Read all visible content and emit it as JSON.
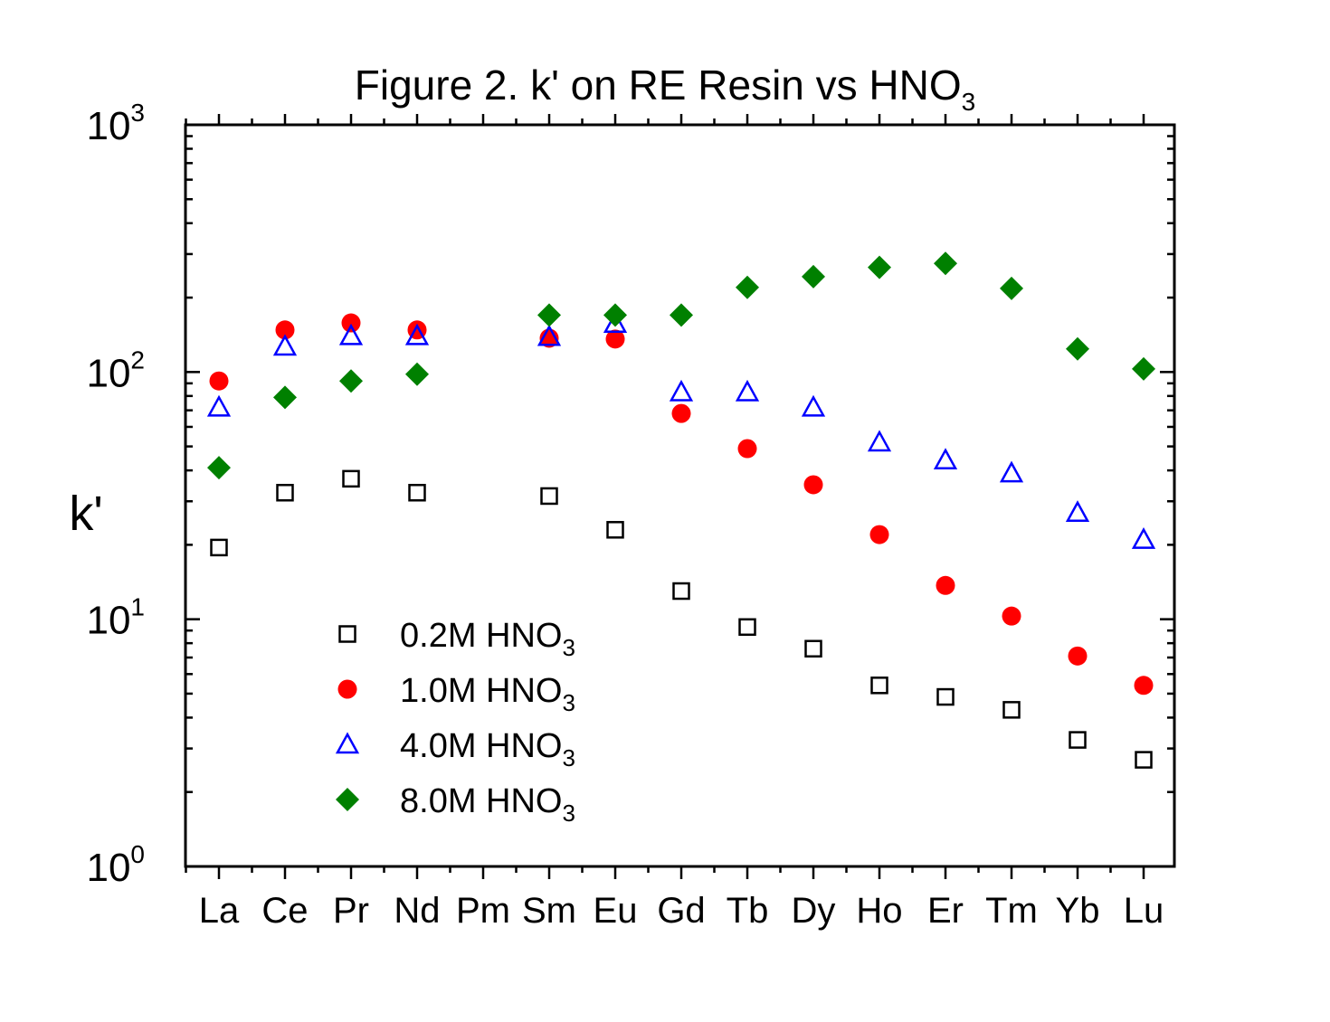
{
  "chart_data": {
    "type": "scatter",
    "title": "Figure 2. k' on RE Resin vs HNO",
    "title_subscript": "3",
    "ylabel": "k'",
    "yscale": "log",
    "ylim": [
      1,
      1000
    ],
    "y_ticks": [
      {
        "base": "10",
        "exp": "0",
        "value": 1
      },
      {
        "base": "10",
        "exp": "1",
        "value": 10
      },
      {
        "base": "10",
        "exp": "2",
        "value": 100
      },
      {
        "base": "10",
        "exp": "3",
        "value": 1000
      }
    ],
    "categories": [
      "La",
      "Ce",
      "Pr",
      "Nd",
      "Pm",
      "Sm",
      "Eu",
      "Gd",
      "Tb",
      "Dy",
      "Ho",
      "Er",
      "Tm",
      "Yb",
      "Lu"
    ],
    "legend_position": "lower-left",
    "series": [
      {
        "name": "0.2M HNO",
        "name_subscript": "3",
        "marker": "open-square",
        "color": "#000000",
        "values": [
          19.5,
          32.5,
          37,
          32.5,
          null,
          31.5,
          23,
          13,
          9.3,
          7.6,
          5.4,
          4.85,
          4.3,
          3.25,
          2.7
        ]
      },
      {
        "name": "1.0M HNO",
        "name_subscript": "3",
        "marker": "filled-circle",
        "color": "#ff0000",
        "values": [
          92,
          148,
          158,
          148,
          null,
          137,
          136,
          68,
          49,
          35,
          22,
          13.7,
          10.3,
          7.1,
          5.4
        ]
      },
      {
        "name": "4.0M HNO",
        "name_subscript": "3",
        "marker": "open-triangle",
        "color": "#0000ff",
        "values": [
          72,
          127,
          140,
          140,
          null,
          139,
          157,
          83,
          83,
          72,
          52,
          44,
          39,
          27,
          21
        ]
      },
      {
        "name": "8.0M HNO",
        "name_subscript": "3",
        "marker": "filled-diamond",
        "color": "#008000",
        "values": [
          41,
          79,
          92,
          98,
          null,
          170,
          170,
          170,
          220,
          243,
          265,
          275,
          218,
          124,
          103
        ]
      }
    ]
  }
}
